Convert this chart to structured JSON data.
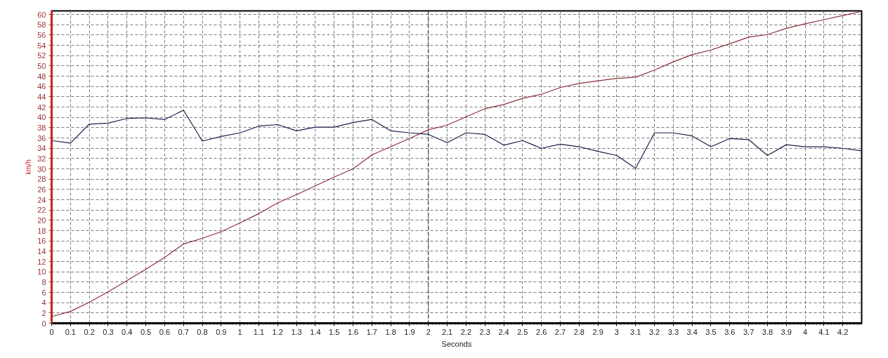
{
  "chart_data": {
    "type": "line",
    "xlabel": "Seconds",
    "ylabel": "km/h",
    "x": [
      0,
      0.1,
      0.2,
      0.3,
      0.4,
      0.5,
      0.6,
      0.7,
      0.8,
      0.9,
      1,
      1.1,
      1.2,
      1.3,
      1.4,
      1.5,
      1.6,
      1.7,
      1.8,
      1.9,
      2,
      2.1,
      2.2,
      2.3,
      2.4,
      2.5,
      2.6,
      2.7,
      2.8,
      2.9,
      3,
      3.1,
      3.2,
      3.3,
      3.4,
      3.5,
      3.6,
      3.7,
      3.8,
      3.9,
      4,
      4.1,
      4.2,
      4.3
    ],
    "series": [
      {
        "color": "#8b2f3a",
        "values": [
          1.3,
          2.3,
          4.1,
          6.1,
          8.3,
          10.5,
          12.8,
          15.4,
          16.5,
          17.8,
          19.5,
          21.3,
          23.4,
          25.0,
          26.7,
          28.4,
          30.0,
          32.7,
          34.3,
          35.9,
          37.6,
          38.5,
          40.1,
          41.7,
          42.5,
          43.7,
          44.5,
          45.8,
          46.6,
          47.1,
          47.6,
          47.8,
          49.2,
          50.8,
          52.2,
          53.1,
          54.3,
          55.6,
          56.1,
          57.3,
          58.2,
          59.0,
          59.8,
          60.6
        ]
      },
      {
        "color": "#1c1c4c",
        "values": [
          35.5,
          35.0,
          38.7,
          38.9,
          39.8,
          39.9,
          39.6,
          41.4,
          35.4,
          36.3,
          37.0,
          38.3,
          38.6,
          37.4,
          38.1,
          38.1,
          39.0,
          39.6,
          37.4,
          37.0,
          36.7,
          35.1,
          37.0,
          36.7,
          34.6,
          35.5,
          34.0,
          34.8,
          34.3,
          33.4,
          32.6,
          30.1,
          37.0,
          37.0,
          36.4,
          34.3,
          35.9,
          35.7,
          32.6,
          34.7,
          34.3,
          34.3,
          34.0,
          33.5
        ]
      }
    ],
    "xlim": [
      0,
      4.3
    ],
    "ylim": [
      0,
      60.7
    ],
    "xticks": [
      0,
      0.1,
      0.2,
      0.3,
      0.4,
      0.5,
      0.6,
      0.7,
      0.8,
      0.9,
      1,
      1.1,
      1.2,
      1.3,
      1.4,
      1.5,
      1.6,
      1.7,
      1.8,
      1.9,
      2,
      2.1,
      2.2,
      2.3,
      2.4,
      2.5,
      2.6,
      2.7,
      2.8,
      2.9,
      3,
      3.1,
      3.2,
      3.3,
      3.4,
      3.5,
      3.6,
      3.7,
      3.8,
      3.9,
      4,
      4.1,
      4.2
    ],
    "yticks": [
      0,
      2,
      4,
      6,
      8,
      10,
      12,
      14,
      16,
      18,
      20,
      22,
      24,
      26,
      28,
      30,
      32,
      34,
      36,
      38,
      40,
      42,
      44,
      46,
      48,
      50,
      52,
      54,
      56,
      58,
      60
    ],
    "grid": true,
    "ref_lines": [
      {
        "axis": "x",
        "value": 2,
        "color": "#222222",
        "line_style": "dashed"
      }
    ]
  }
}
